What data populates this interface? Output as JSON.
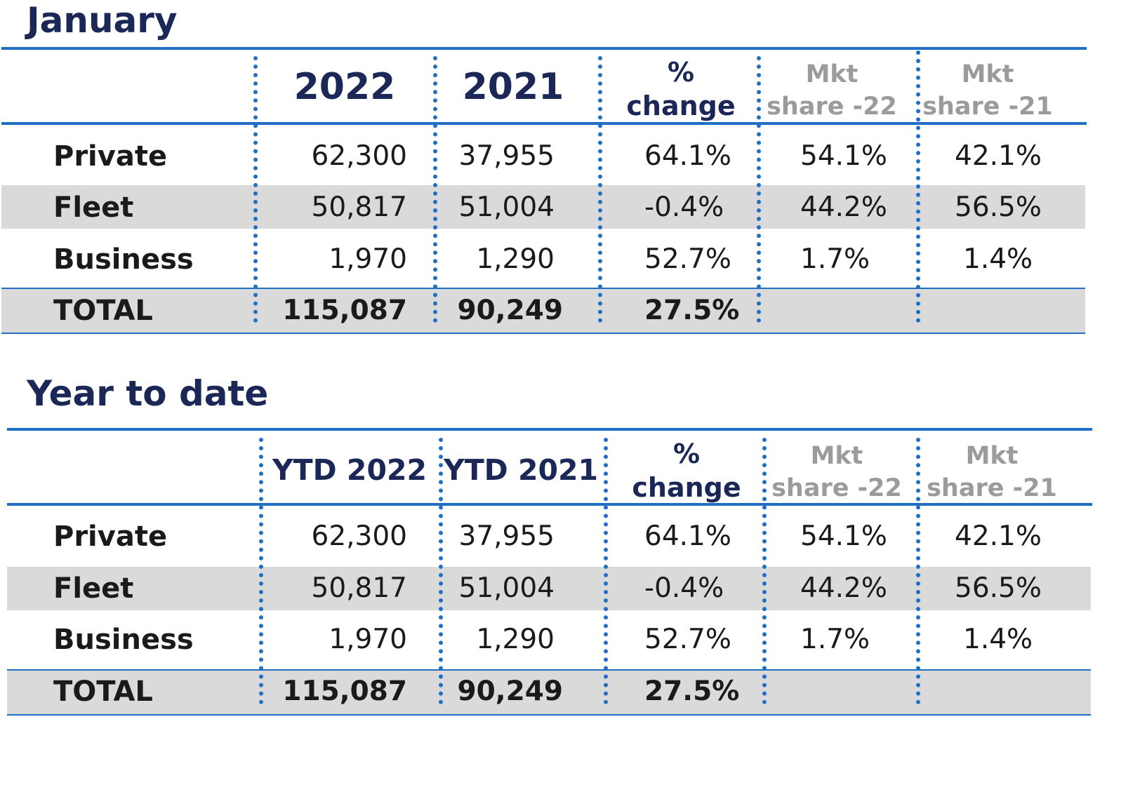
{
  "monthly": {
    "title": "January",
    "headers": {
      "col1": "2022",
      "col2": "2021",
      "change_line1": "%",
      "change_line2": "change",
      "share22_line1": "Mkt",
      "share22_line2": "share -22",
      "share21_line1": "Mkt",
      "share21_line2": "share -21"
    },
    "rows": [
      {
        "label": "Private",
        "v2022": "62,300",
        "v2021": "37,955",
        "change": "64.1%",
        "share22": "54.1%",
        "share21": "42.1%"
      },
      {
        "label": "Fleet",
        "v2022": "50,817",
        "v2021": "51,004",
        "change": "-0.4%",
        "share22": "44.2%",
        "share21": "56.5%"
      },
      {
        "label": "Business",
        "v2022": "1,970",
        "v2021": "1,290",
        "change": "52.7%",
        "share22": "1.7%",
        "share21": "1.4%"
      }
    ],
    "total": {
      "label": "TOTAL",
      "v2022": "115,087",
      "v2021": "90,249",
      "change": "27.5%"
    }
  },
  "ytd": {
    "title": "Year to date",
    "headers": {
      "col1": "YTD 2022",
      "col2": "YTD 2021",
      "change_line1": "%",
      "change_line2": "change",
      "share22_line1": "Mkt",
      "share22_line2": "share -22",
      "share21_line1": "Mkt",
      "share21_line2": "share -21"
    },
    "rows": [
      {
        "label": "Private",
        "v2022": "62,300",
        "v2021": "37,955",
        "change": "64.1%",
        "share22": "54.1%",
        "share21": "42.1%"
      },
      {
        "label": "Fleet",
        "v2022": "50,817",
        "v2021": "51,004",
        "change": "-0.4%",
        "share22": "44.2%",
        "share21": "56.5%"
      },
      {
        "label": "Business",
        "v2022": "1,970",
        "v2021": "1,290",
        "change": "52.7%",
        "share22": "1.7%",
        "share21": "1.4%"
      }
    ],
    "total": {
      "label": "TOTAL",
      "v2022": "115,087",
      "v2021": "90,249",
      "change": "27.5%"
    }
  },
  "colors": {
    "title": "#1b2757",
    "rule": "#1f6fc4",
    "band": "#dadada",
    "muted_header": "#9b9b9b"
  }
}
